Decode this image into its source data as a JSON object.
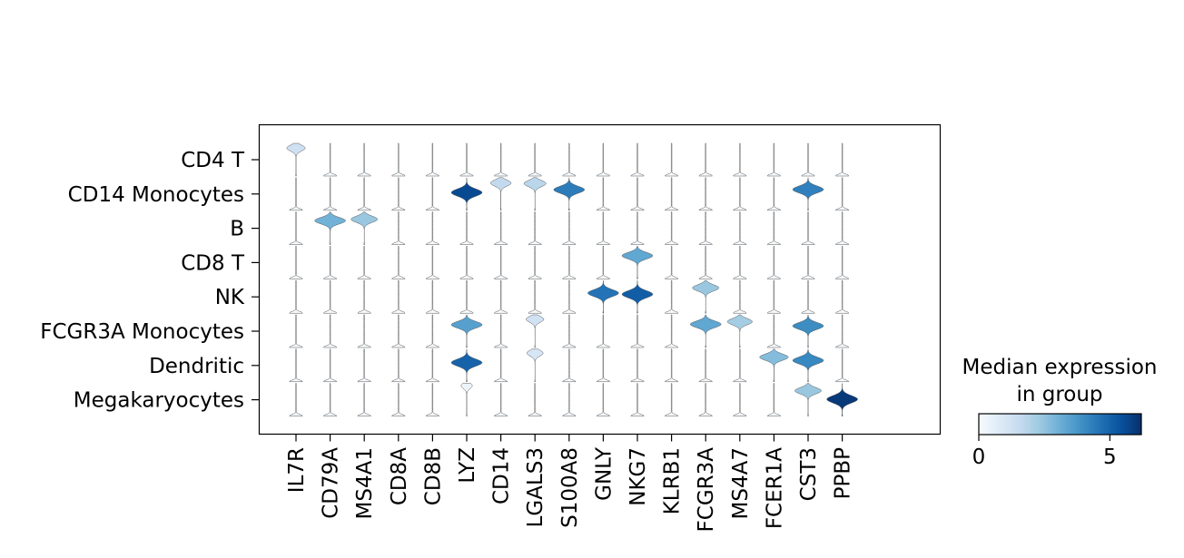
{
  "chart_data": {
    "type": "stacked-violin",
    "genes": [
      "IL7R",
      "CD79A",
      "MS4A1",
      "CD8A",
      "CD8B",
      "LYZ",
      "CD14",
      "LGALS3",
      "S100A8",
      "GNLY",
      "NKG7",
      "KLRB1",
      "FCGR3A",
      "MS4A7",
      "FCER1A",
      "CST3",
      "PPBP"
    ],
    "groups": [
      "CD4 T",
      "CD14 Monocytes",
      "B",
      "CD8 T",
      "NK",
      "FCGR3A Monocytes",
      "Dendritic",
      "Megakaryocytes"
    ],
    "median_expression": [
      [
        1.3,
        0,
        0,
        0,
        0,
        0,
        0,
        0,
        0,
        0,
        0,
        0,
        0,
        0,
        0,
        0,
        0
      ],
      [
        0,
        0,
        0,
        0,
        0,
        5.6,
        1.6,
        1.8,
        4.4,
        0,
        0,
        0,
        0,
        0,
        0,
        4.3,
        0
      ],
      [
        0,
        3.0,
        2.4,
        0,
        0,
        0,
        0,
        0,
        0,
        0,
        0,
        0,
        0,
        0,
        0,
        0,
        0
      ],
      [
        0,
        0,
        0,
        0,
        0,
        0,
        0,
        0,
        0,
        0,
        3.3,
        0,
        0,
        0,
        0,
        0,
        0
      ],
      [
        0,
        0,
        0,
        0,
        0,
        0,
        0,
        0,
        0,
        4.6,
        5.1,
        0,
        2.4,
        0,
        0,
        0,
        0
      ],
      [
        0,
        0,
        0,
        0,
        0,
        3.5,
        0,
        1.2,
        0,
        0,
        0,
        0,
        3.3,
        2.2,
        0,
        4.0,
        0
      ],
      [
        0,
        0,
        0,
        0,
        0,
        5.0,
        0,
        1.0,
        0,
        0,
        0,
        0,
        0,
        0,
        2.7,
        4.1,
        0
      ],
      [
        0,
        0,
        0,
        0,
        0,
        0.3,
        0,
        0,
        0,
        0,
        0,
        0,
        0,
        0,
        0,
        2.4,
        6.0
      ]
    ],
    "colorbar": {
      "title": "Median expression\nin group",
      "title_lines": [
        "Median expression",
        "in group"
      ],
      "range": [
        0,
        6.2
      ],
      "tick_values": [
        0,
        5
      ],
      "tick_labels": [
        "0",
        "5"
      ],
      "colormap": "Blues"
    }
  }
}
